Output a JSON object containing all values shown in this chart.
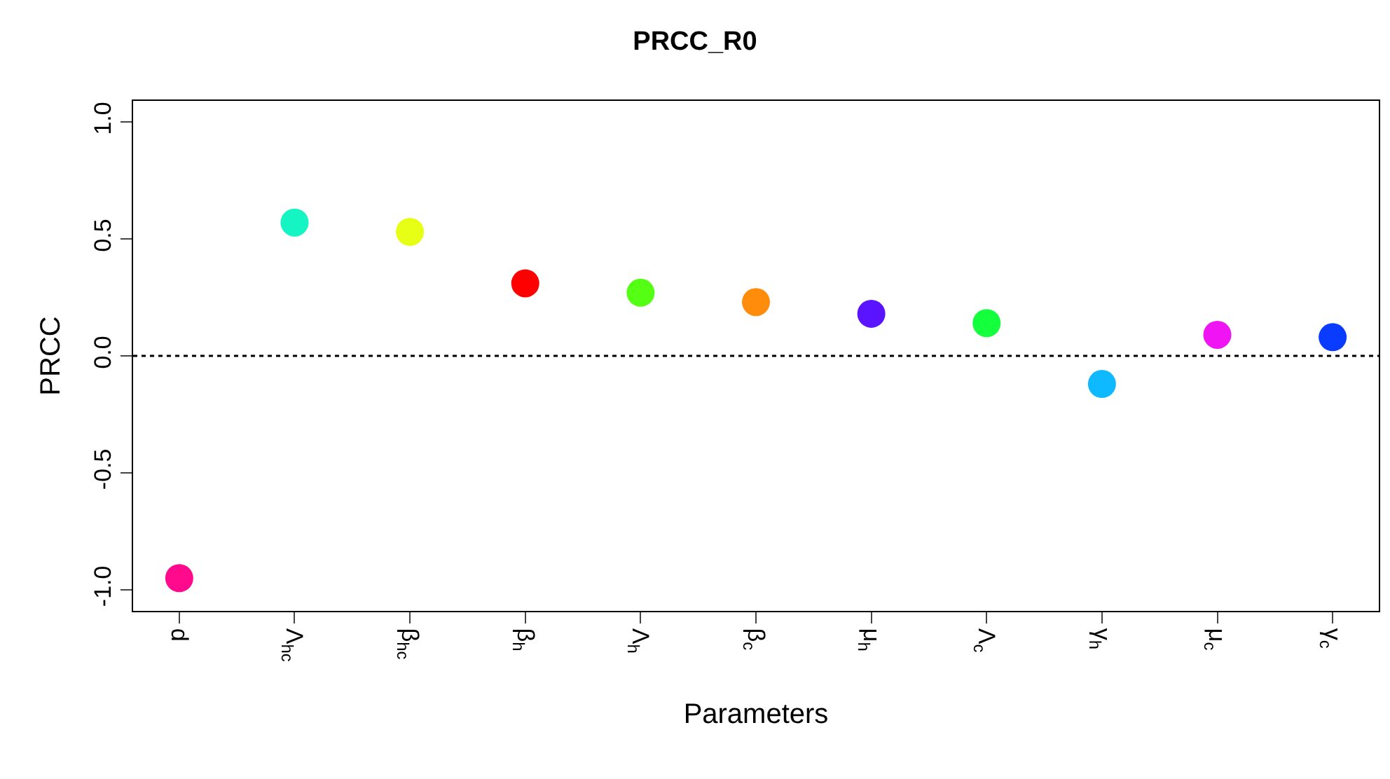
{
  "chart_data": {
    "type": "scatter",
    "title": "PRCC_R0",
    "xlabel": "Parameters",
    "ylabel": "PRCC",
    "categories": [
      "d",
      "Λ$_{hc}$",
      "β$_{hc}$",
      "β$_{h}$",
      "Λ$_{h}$",
      "β$_{c}$",
      "μ$_{h}$",
      "Λ$_{c}$",
      "γ$_{h}$",
      "μ$_{c}$",
      "γ$_{c}$"
    ],
    "values": [
      -0.95,
      0.57,
      0.53,
      0.31,
      0.27,
      0.23,
      0.18,
      0.14,
      -0.12,
      0.09,
      0.08
    ],
    "colors": [
      "#ff0a8c",
      "#14f5c3",
      "#e6ff14",
      "#ff0000",
      "#55ff14",
      "#ff8c0a",
      "#5a14ff",
      "#14ff3c",
      "#0fb9ff",
      "#f014f5",
      "#0a3cff"
    ],
    "ylim": [
      -1.09,
      1.09
    ],
    "yticks": [
      {
        "value": -1.0,
        "label": "-1.0"
      },
      {
        "value": -0.5,
        "label": "-0.5"
      },
      {
        "value": 0.0,
        "label": "0.0"
      },
      {
        "value": 0.5,
        "label": "0.5"
      },
      {
        "value": 1.0,
        "label": "1.0"
      }
    ],
    "ref_lines": [
      {
        "axis": "y",
        "value": 0,
        "line_style": "dotted",
        "color": "#000000"
      }
    ],
    "marker": "circle"
  }
}
